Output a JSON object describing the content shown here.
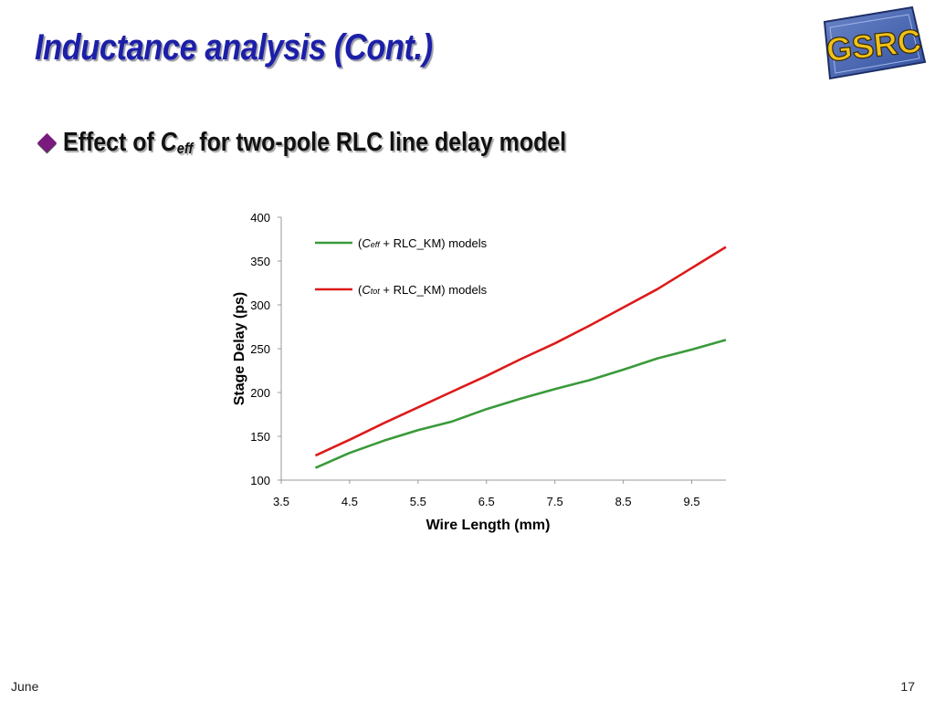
{
  "slide": {
    "title": "Inductance analysis (Cont.)",
    "bullet": {
      "prefix": "Effect of ",
      "symbol": "C",
      "subscript": "eff",
      "suffix": " for two-pole RLC line delay model"
    },
    "footer_left": "June",
    "page_number": "17"
  },
  "logo": {
    "text": "GSRC",
    "icon": "gsrc-logo"
  },
  "colors": {
    "title": "#1c1fa8",
    "bullet": "#7a1a7e",
    "green": "#3a9a3a",
    "red": "#dd1a1a"
  },
  "chart_data": {
    "type": "line",
    "title": "",
    "xlabel": "Wire Length (mm)",
    "ylabel": "Stage Delay (ps)",
    "xlim": [
      3.5,
      10
    ],
    "ylim": [
      100,
      400
    ],
    "xticks": [
      "3.5",
      "4.5",
      "5.5",
      "6.5",
      "7.5",
      "8.5",
      "9.5"
    ],
    "yticks": [
      "100",
      "150",
      "200",
      "250",
      "300",
      "350",
      "400"
    ],
    "grid": false,
    "legend_position": "top-left",
    "series": [
      {
        "name_prefix": "(",
        "name_symbol": "C",
        "name_sub": "eff",
        "name_suffix": " + RLC_KM) models",
        "color": "#3a9a3a",
        "x": [
          4.0,
          4.5,
          5.0,
          5.5,
          6.0,
          6.5,
          7.0,
          7.5,
          8.0,
          8.5,
          9.0,
          9.5,
          10.0
        ],
        "y": [
          114,
          131,
          145,
          157,
          167,
          181,
          193,
          204,
          214,
          226,
          239,
          249,
          260
        ]
      },
      {
        "name_prefix": "(",
        "name_symbol": "C",
        "name_sub": "tot",
        "name_suffix": " + RLC_KM) models",
        "color": "#dd1a1a",
        "x": [
          4.0,
          4.5,
          5.0,
          5.5,
          6.0,
          6.5,
          7.0,
          7.5,
          8.0,
          8.5,
          9.0,
          9.5,
          10.0
        ],
        "y": [
          128,
          146,
          165,
          183,
          201,
          219,
          238,
          256,
          276,
          297,
          318,
          342,
          366
        ]
      }
    ]
  }
}
